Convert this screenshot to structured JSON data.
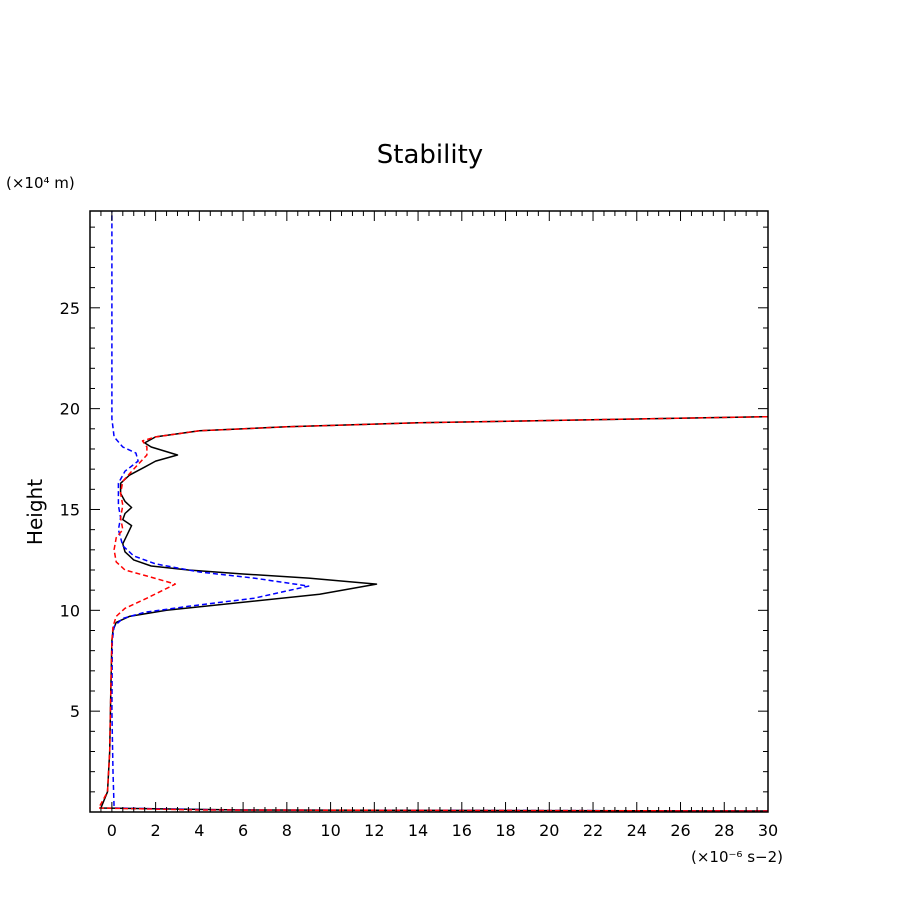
{
  "chart_data": {
    "type": "line",
    "title": "Stability",
    "ylabel": "Height",
    "y_unit_label": "(×10⁴ m)",
    "x_unit_label": "(×10⁻⁶ s−2)",
    "xlim": [
      -1,
      30
    ],
    "ylim": [
      0,
      29.8
    ],
    "x_ticks": [
      0,
      2,
      4,
      6,
      8,
      10,
      12,
      14,
      16,
      18,
      20,
      22,
      24,
      26,
      28,
      30
    ],
    "y_ticks": [
      5,
      10,
      15,
      20,
      25
    ],
    "grid": false,
    "legend": "none",
    "series": [
      {
        "color": "#000000",
        "style": "solid",
        "points": [
          [
            30,
            0.05
          ],
          [
            6,
            0.1
          ],
          [
            -0.5,
            0.2
          ],
          [
            -0.2,
            1.0
          ],
          [
            -0.1,
            3.0
          ],
          [
            -0.05,
            6.0
          ],
          [
            0,
            8.5
          ],
          [
            0.05,
            9.0
          ],
          [
            0.2,
            9.4
          ],
          [
            0.8,
            9.7
          ],
          [
            2.5,
            10.0
          ],
          [
            6,
            10.4
          ],
          [
            9.5,
            10.8
          ],
          [
            12.1,
            11.3
          ],
          [
            9,
            11.6
          ],
          [
            6,
            11.8
          ],
          [
            3.5,
            12.0
          ],
          [
            1.8,
            12.2
          ],
          [
            1,
            12.5
          ],
          [
            0.6,
            12.9
          ],
          [
            0.5,
            13.3
          ],
          [
            0.9,
            14.2
          ],
          [
            0.5,
            14.5
          ],
          [
            0.6,
            14.8
          ],
          [
            0.9,
            15.1
          ],
          [
            0.6,
            15.4
          ],
          [
            0.4,
            15.8
          ],
          [
            0.4,
            16.3
          ],
          [
            0.8,
            16.7
          ],
          [
            1.5,
            17.1
          ],
          [
            2,
            17.4
          ],
          [
            3,
            17.7
          ],
          [
            1.8,
            18.1
          ],
          [
            1.5,
            18.3
          ],
          [
            2,
            18.6
          ],
          [
            4,
            18.9
          ],
          [
            8,
            19.1
          ],
          [
            14,
            19.3
          ],
          [
            22,
            19.45
          ],
          [
            30,
            19.6
          ]
        ]
      },
      {
        "color": "#0000ff",
        "style": "dashed",
        "points": [
          [
            30,
            0.05
          ],
          [
            5,
            0.1
          ],
          [
            0.1,
            0.2
          ],
          [
            0.05,
            2.0
          ],
          [
            0,
            5.0
          ],
          [
            0.02,
            8.5
          ],
          [
            0.1,
            9.2
          ],
          [
            0.5,
            9.6
          ],
          [
            1.5,
            9.9
          ],
          [
            3.5,
            10.2
          ],
          [
            6.5,
            10.6
          ],
          [
            9,
            11.2
          ],
          [
            6.5,
            11.6
          ],
          [
            4,
            11.9
          ],
          [
            2,
            12.3
          ],
          [
            1,
            12.7
          ],
          [
            0.5,
            13.2
          ],
          [
            0.3,
            14.0
          ],
          [
            0.4,
            14.6
          ],
          [
            0.3,
            15.2
          ],
          [
            0.3,
            16.3
          ],
          [
            0.6,
            16.9
          ],
          [
            1.2,
            17.4
          ],
          [
            1.1,
            17.8
          ],
          [
            0.5,
            18.1
          ],
          [
            0.1,
            18.6
          ],
          [
            0,
            19.5
          ],
          [
            0,
            22
          ],
          [
            0,
            26
          ],
          [
            0,
            29.8
          ]
        ]
      },
      {
        "color": "#ff0000",
        "style": "dashed",
        "points": [
          [
            30,
            0.05
          ],
          [
            4,
            0.1
          ],
          [
            -0.6,
            0.2
          ],
          [
            -0.2,
            1.0
          ],
          [
            -0.1,
            3.0
          ],
          [
            -0.05,
            6.0
          ],
          [
            0,
            8.5
          ],
          [
            0.05,
            9.2
          ],
          [
            0.2,
            9.7
          ],
          [
            0.6,
            10.1
          ],
          [
            1.6,
            10.6
          ],
          [
            2.9,
            11.3
          ],
          [
            1.6,
            11.7
          ],
          [
            0.6,
            12.0
          ],
          [
            0.2,
            12.4
          ],
          [
            0.1,
            13.0
          ],
          [
            0.2,
            13.6
          ],
          [
            0.5,
            14.0
          ],
          [
            0.4,
            14.6
          ],
          [
            0.5,
            15.2
          ],
          [
            0.4,
            15.8
          ],
          [
            0.5,
            16.4
          ],
          [
            1,
            17.0
          ],
          [
            1.6,
            17.7
          ],
          [
            1.6,
            18.1
          ],
          [
            1.4,
            18.4
          ],
          [
            2,
            18.6
          ],
          [
            4,
            18.9
          ],
          [
            8,
            19.1
          ],
          [
            14,
            19.3
          ],
          [
            22,
            19.45
          ],
          [
            30,
            19.6
          ]
        ]
      }
    ]
  }
}
